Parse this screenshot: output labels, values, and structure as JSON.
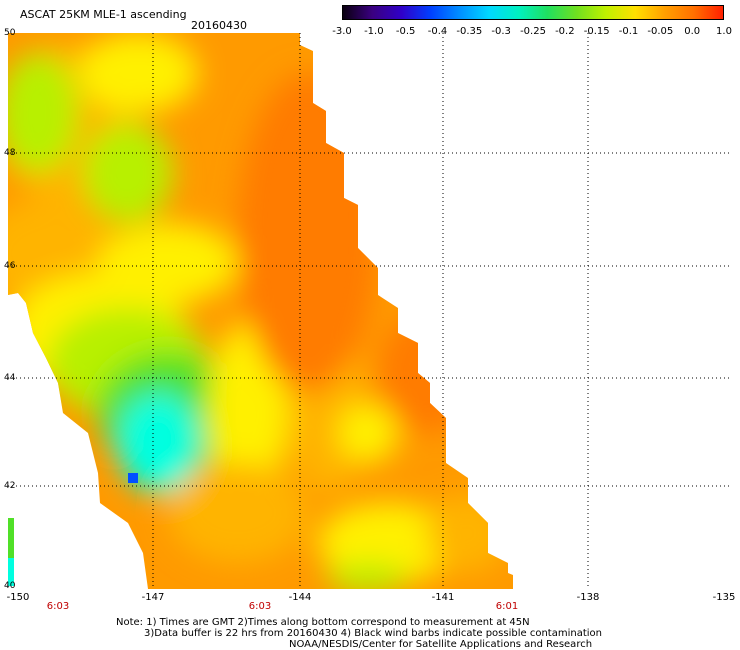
{
  "header": {
    "title": "ASCAT 25KM MLE-1 ascending",
    "date": "20160430"
  },
  "colorbar": {
    "labels": [
      "-3.0",
      "-1.0",
      "-0.5",
      "-0.4",
      "-0.35",
      "-0.3",
      "-0.25",
      "-0.2",
      "-0.15",
      "-0.1",
      "-0.05",
      "0.0",
      "1.0"
    ],
    "colors": [
      "#0a0010",
      "#3a0080",
      "#3000c8",
      "#0040ff",
      "#0090ff",
      "#00d8ff",
      "#00f0c0",
      "#20e060",
      "#70e020",
      "#c0f000",
      "#ffe000",
      "#ffa000",
      "#ff7000",
      "#ff2000"
    ]
  },
  "map": {
    "lat_labels": [
      "50",
      "48",
      "46",
      "44",
      "42",
      "40"
    ],
    "lon_labels": [
      "-150",
      "-147",
      "-144",
      "-141",
      "-138",
      "-135"
    ],
    "time_labels": [
      "6:03",
      "6:03",
      "6:01"
    ],
    "fill_colors": {
      "orange": "#ff9a00",
      "light_orange": "#ffb400",
      "deep_orange": "#ff7c00",
      "yellow": "#fff000",
      "yellow_green": "#b8f000",
      "green": "#50e028",
      "cyan": "#00ffe0",
      "blue": "#0050ff"
    }
  },
  "notes": {
    "line1": "Note: 1) Times are GMT 2)Times along bottom correspond to measurement at 45N",
    "line2": "3)Data buffer is 22 hrs from 20160430 4) Black wind barbs indicate possible contamination",
    "line3": "NOAA/NESDIS/Center for Satellite Applications and Research"
  }
}
